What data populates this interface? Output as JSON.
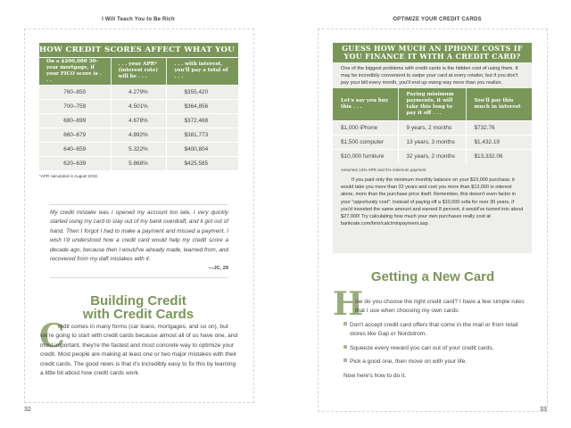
{
  "left_page": {
    "running_head": "I Will Teach You to Be Rich",
    "table": {
      "title": "HOW CREDIT SCORES AFFECT WHAT YOU PAY",
      "headers": [
        "On a $200,000 30-year mortgage, if your FICO score is . . .",
        ". . . your APR* (interest rate) will be . . .",
        ". . . with interest, you'll pay a total of . . ."
      ],
      "rows": [
        [
          "760–850",
          "4.279%",
          "$355,420"
        ],
        [
          "700–759",
          "4.501%",
          "$364,856"
        ],
        [
          "680–699",
          "4.678%",
          "$372,468"
        ],
        [
          "660–679",
          "4.892%",
          "$381,773"
        ],
        [
          "640–659",
          "5.322%",
          "$400,804"
        ],
        [
          "620–639",
          "5.868%",
          "$425,585"
        ]
      ],
      "footnote": "*APR calculated in August 2018."
    },
    "quote": {
      "text": "My credit mistake was I opened my account too late, I very quickly started using my card to stay out of my bank overdraft, and it got out of hand. Then I forgot I had to make a payment and missed a payment. I wish I'd understood how a credit card would help my credit score a decade ago, because then I would've already made, learned from, and recovered from my daft mistakes with it.",
      "attribution": "—JC, 29"
    },
    "heading_line1": "Building Credit",
    "heading_line2": "with Credit Cards",
    "drop_cap": "C",
    "body": "redit comes in many forms (car loans, mortgages, and so on), but we're going to start with credit cards because almost all of us have one, and most important, they're the fastest and most concrete way to optimize your credit. Most people are making at least one or two major mistakes with their credit cards. The good news is that it's incredibly easy to fix this by learning a little bit about how credit cards work.",
    "page_number": "32"
  },
  "right_page": {
    "running_head": "OPTIMIZE YOUR CREDIT CARDS",
    "sidebar": {
      "title": "GUESS HOW MUCH AN IPHONE COSTS IF YOU FINANCE IT WITH A CREDIT CARD?",
      "intro": "One of the biggest problems with credit cards is the hidden cost of using them. It may be incredibly convenient to swipe your card at every retailer, but if you don't pay your bill every month, you'll end up owing way more than you realize.",
      "headers": [
        "Let's say you buy this . . .",
        "Paying minimum payments, it will take this long to pay it off . . .",
        "You'll pay this much in interest"
      ],
      "rows": [
        [
          "$1,000 iPhone",
          "9 years, 2 months",
          "$732.76"
        ],
        [
          "$1,500 computer",
          "13 years, 3 months",
          "$1,432.19"
        ],
        [
          "$10,000 furniture",
          "32 years, 2 months",
          "$13,332.06"
        ]
      ],
      "footnote": "Assumes 14% APR and 2% minimum payment",
      "paragraph": "If you paid only the minimum monthly balance on your $10,000 purchase, it would take you more than 32 years and cost you more than $13,000 in interest alone, more than the purchase price itself. Remember, this doesn't even factor in your \"opportunity cost\": Instead of paying off a $10,000 sofa for over 30 years, if you'd invested the same amount and earned 8 percent, it would've turned into about $27,000! Try calculating how much your own purchases really cost at bankrate.com/brm/calc/minpayment.asp."
    },
    "heading": "Getting a New Card",
    "drop_cap": "H",
    "intro": "ow do you choose the right credit card? I have a few simple rules that I use when choosing my own cards:",
    "bullets": [
      "Don't accept credit card offers that come in the mail or from retail stores like Gap or Nordstrom.",
      "Squeeze every reward you can out of your credit cards.",
      "Pick a good one, then move on with your life."
    ],
    "closing": "Now here's how to do it.",
    "page_number": "33"
  },
  "colors": {
    "accent_green": "#7a9659",
    "sidebar_gray": "#eeeeea"
  }
}
